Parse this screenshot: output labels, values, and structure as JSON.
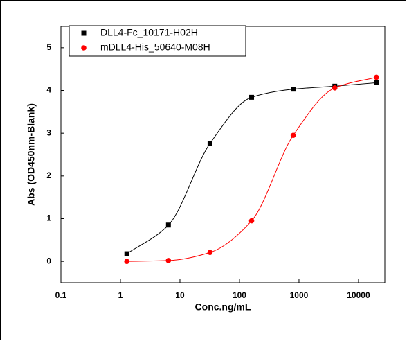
{
  "chart_data": {
    "type": "scatter",
    "x_label": "Conc.ng/mL",
    "y_label": "Abs (OD450nm-Blank)",
    "x": [
      1.28,
      6.4,
      32,
      160,
      800,
      4000,
      20000
    ],
    "series": [
      {
        "name": "DLL4-Fc_10171-H02H",
        "color": "#000000",
        "marker": "square",
        "values": [
          0.18,
          0.85,
          2.76,
          3.84,
          4.03,
          4.1,
          4.18
        ]
      },
      {
        "name": "mDLL4-His_50640-M08H",
        "color": "#ff0000",
        "marker": "circle",
        "values": [
          0.0,
          0.02,
          0.21,
          0.95,
          2.95,
          4.06,
          4.31
        ]
      }
    ],
    "xlim": [
      0.1,
      27700
    ],
    "xticks": [
      0.1,
      1,
      10,
      100,
      1000,
      10000
    ],
    "xscale": "log",
    "ylim": [
      -0.5,
      5.5
    ],
    "yticks": [
      0,
      1,
      2,
      3,
      4,
      5
    ],
    "legend": "upper left",
    "grid": false
  }
}
